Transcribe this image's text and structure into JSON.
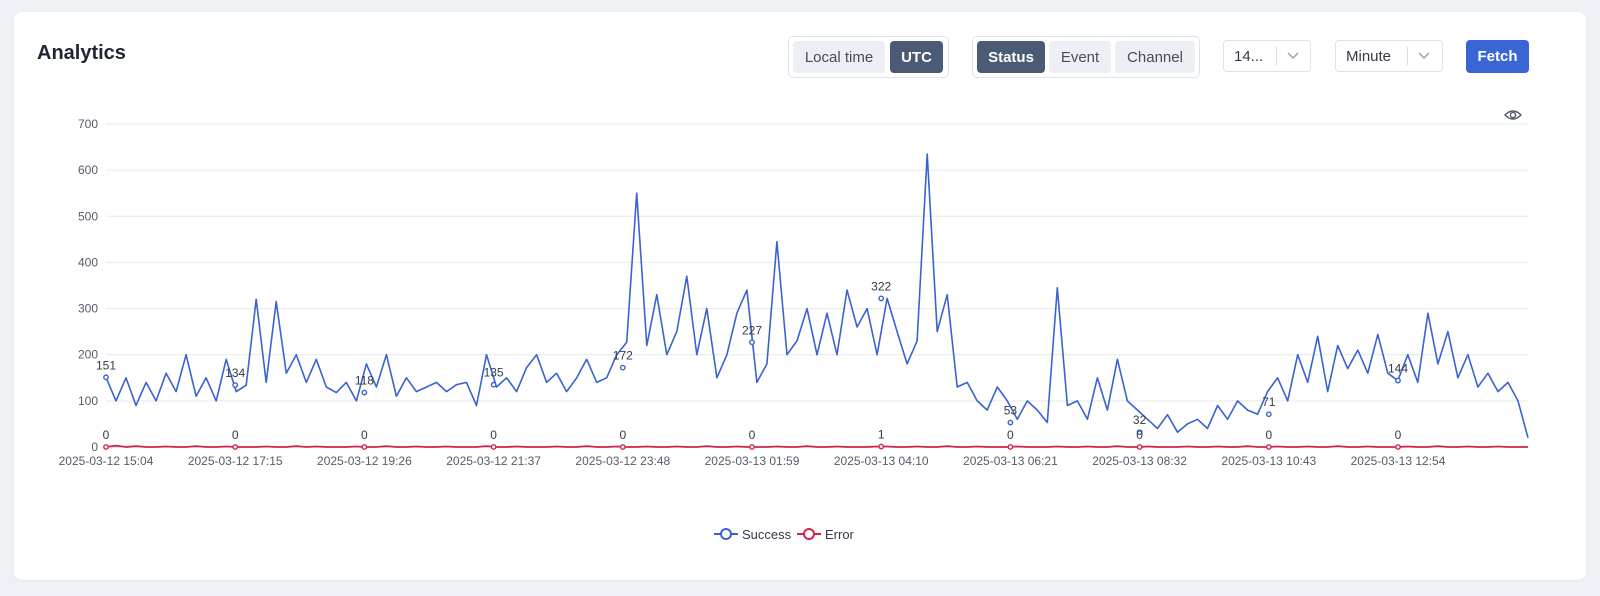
{
  "header": {
    "title": "Analytics"
  },
  "timezone_toggle": {
    "options": [
      "Local time",
      "UTC"
    ],
    "active": "UTC"
  },
  "group_toggle": {
    "options": [
      "Status",
      "Event",
      "Channel"
    ],
    "active": "Status"
  },
  "range_select": {
    "value": "14..."
  },
  "interval_select": {
    "value": "Minute"
  },
  "fetch_button": {
    "label": "Fetch"
  },
  "icons": {
    "visibility": "eye-icon",
    "dropdown": "chevron-down-icon"
  },
  "colors": {
    "success": "#3a63d1",
    "error": "#d3234a",
    "primary": "#3a65d4",
    "active_toggle": "#4b5b75"
  },
  "chart_data": {
    "type": "line",
    "y_ticks": [
      0,
      100,
      200,
      300,
      400,
      500,
      600,
      700
    ],
    "ylim": [
      0,
      700
    ],
    "x_ticks": [
      "2025-03-12 15:04",
      "2025-03-12 17:15",
      "2025-03-12 19:26",
      "2025-03-12 21:37",
      "2025-03-12 23:48",
      "2025-03-13 01:59",
      "2025-03-13 04:10",
      "2025-03-13 06:21",
      "2025-03-13 08:32",
      "2025-03-13 10:43",
      "2025-03-13 12:54"
    ],
    "grid": true,
    "legend_position": "bottom",
    "series": [
      {
        "name": "Success",
        "values": [
          151,
          100,
          150,
          90,
          140,
          100,
          160,
          120,
          200,
          110,
          150,
          100,
          190,
          120,
          134,
          320,
          140,
          315,
          160,
          200,
          140,
          190,
          130,
          118,
          140,
          100,
          180,
          130,
          200,
          110,
          150,
          120,
          130,
          140,
          120,
          135,
          140,
          90,
          200,
          130,
          150,
          120,
          172,
          200,
          140,
          160,
          120,
          150,
          190,
          140,
          150,
          200,
          227,
          550,
          220,
          330,
          200,
          250,
          370,
          200,
          300,
          150,
          200,
          290,
          340,
          140,
          180,
          445,
          200,
          230,
          300,
          200,
          290,
          200,
          340,
          260,
          300,
          200,
          322,
          250,
          180,
          230,
          635,
          250,
          330,
          130,
          140,
          100,
          80,
          130,
          100,
          60,
          100,
          80,
          53,
          345,
          90,
          100,
          60,
          150,
          80,
          190,
          100,
          80,
          60,
          40,
          70,
          32,
          50,
          60,
          40,
          90,
          60,
          100,
          80,
          71,
          120,
          150,
          100,
          200,
          140,
          240,
          120,
          220,
          170,
          210,
          160,
          244,
          160,
          144,
          200,
          140,
          290,
          180,
          250,
          150,
          200,
          130,
          160,
          120,
          140,
          100,
          20
        ],
        "point_labels": [
          {
            "x": 0,
            "value": 151
          },
          {
            "x": 1,
            "value": 134
          },
          {
            "x": 2,
            "value": 118
          },
          {
            "x": 3,
            "value": 135
          },
          {
            "x": 4,
            "value": 172
          },
          {
            "x": 5,
            "value": 227
          },
          {
            "x": 6,
            "value": 322
          },
          {
            "x": 7,
            "value": 53
          },
          {
            "x": 8,
            "value": 32
          },
          {
            "x": 9,
            "value": 71
          },
          {
            "x": 10,
            "value": 144
          }
        ]
      },
      {
        "name": "Error",
        "values": [
          0,
          3,
          0,
          2,
          0,
          0,
          1,
          0,
          0,
          2,
          0,
          0,
          1,
          0,
          0,
          0,
          1,
          0,
          0,
          2,
          0,
          1,
          0,
          0,
          0,
          1,
          0,
          0,
          2,
          0,
          0,
          1,
          0,
          0,
          1,
          0,
          0,
          0,
          2,
          0,
          0,
          1,
          0,
          0,
          0,
          1,
          0,
          0,
          2,
          0,
          0,
          1,
          0,
          0,
          1,
          0,
          0,
          1,
          0,
          0,
          2,
          0,
          0,
          1,
          0,
          0,
          0,
          1,
          0,
          0,
          2,
          0,
          0,
          1,
          0,
          0,
          0,
          1,
          1,
          0,
          0,
          1,
          0,
          0,
          2,
          0,
          0,
          1,
          0,
          0,
          0,
          1,
          0,
          0,
          0,
          1,
          0,
          0,
          1,
          0,
          0,
          2,
          0,
          0,
          1,
          0,
          0,
          0,
          1,
          0,
          0,
          1,
          0,
          0,
          2,
          0,
          0,
          1,
          0,
          0,
          1,
          0,
          0,
          2,
          0,
          0,
          1,
          0,
          0,
          0,
          1,
          0,
          0,
          2,
          0,
          0,
          1,
          0,
          0,
          1,
          0,
          0,
          0
        ],
        "point_labels": [
          {
            "x": 0,
            "value": 0
          },
          {
            "x": 1,
            "value": 0
          },
          {
            "x": 2,
            "value": 0
          },
          {
            "x": 3,
            "value": 0
          },
          {
            "x": 4,
            "value": 0
          },
          {
            "x": 5,
            "value": 0
          },
          {
            "x": 6,
            "value": 1
          },
          {
            "x": 7,
            "value": 0
          },
          {
            "x": 8,
            "value": 0
          },
          {
            "x": 9,
            "value": 0
          },
          {
            "x": 10,
            "value": 0
          }
        ]
      }
    ]
  }
}
